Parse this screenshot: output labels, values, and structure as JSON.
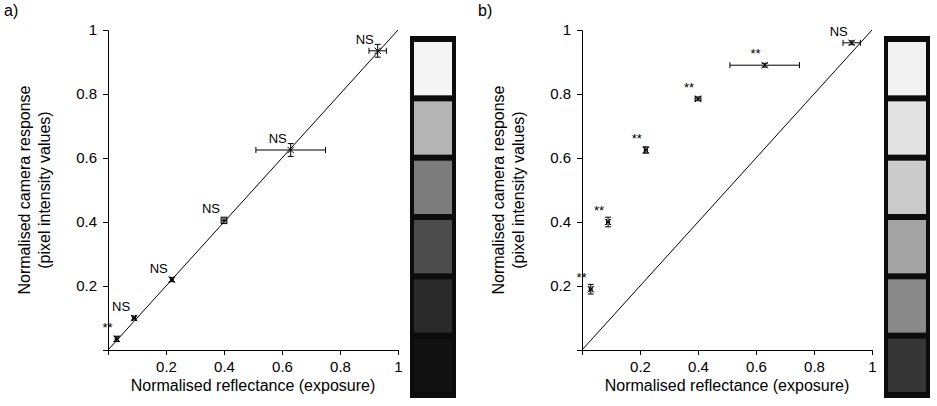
{
  "chart_data": [
    {
      "type": "scatter",
      "panel_label": "a)",
      "xlabel": "Normalised reflectance (exposure)",
      "ylabel": [
        "Normalised camera response",
        "(pixel intensity values)"
      ],
      "x": [
        0.03,
        0.09,
        0.22,
        0.4,
        0.63,
        0.93
      ],
      "values": [
        0.035,
        0.1,
        0.22,
        0.405,
        0.625,
        0.935
      ],
      "x_errors": [
        0.005,
        0.005,
        0.005,
        0.01,
        0.12,
        0.03
      ],
      "y_errors": [
        0.008,
        0.006,
        0.006,
        0.01,
        0.02,
        0.02
      ],
      "annotations": [
        "**",
        "NS",
        "NS",
        "NS",
        "NS",
        "NS"
      ],
      "color": "#000000",
      "marker": "x",
      "xlim": [
        0,
        1
      ],
      "ylim": [
        0,
        1
      ],
      "xticks": [
        0.2,
        0.4,
        0.6,
        0.8,
        1
      ],
      "yticks": [
        0.2,
        0.4,
        0.6,
        0.8,
        1
      ]
    },
    {
      "type": "scatter",
      "panel_label": "b)",
      "xlabel": "Normalised reflectance (exposure)",
      "ylabel": [
        "Normalised camera response",
        "(pixel intensity values)"
      ],
      "x": [
        0.03,
        0.09,
        0.22,
        0.4,
        0.63,
        0.93
      ],
      "values": [
        0.19,
        0.4,
        0.625,
        0.785,
        0.89,
        0.96
      ],
      "x_errors": [
        0.005,
        0.005,
        0.005,
        0.01,
        0.12,
        0.03
      ],
      "y_errors": [
        0.015,
        0.015,
        0.01,
        0.006,
        0.006,
        0.006
      ],
      "annotations": [
        "**",
        "**",
        "**",
        "**",
        "**",
        "NS"
      ],
      "color": "#000000",
      "marker": "x",
      "xlim": [
        0,
        1
      ],
      "ylim": [
        0,
        1
      ],
      "xticks": [
        0.2,
        0.4,
        0.6,
        0.8,
        1
      ],
      "yticks": [
        0.2,
        0.4,
        0.6,
        0.8,
        1
      ]
    }
  ]
}
